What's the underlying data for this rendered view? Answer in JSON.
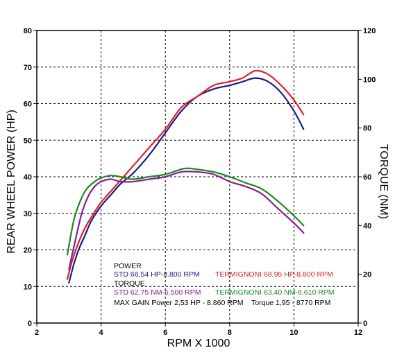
{
  "chart_data": {
    "type": "line",
    "xlabel": "RPM X 1000",
    "ylabel_left": "REAR WHEEL POWER (HP)",
    "ylabel_right": "TORQUE (NM)",
    "xlim": [
      2,
      12
    ],
    "ylim_left": [
      0,
      80
    ],
    "ylim_right": [
      0,
      120
    ],
    "x_ticks": [
      "2",
      "4",
      "6",
      "8",
      "10",
      "12"
    ],
    "y_left_ticks": [
      "0",
      "10",
      "20",
      "30",
      "40",
      "50",
      "60",
      "70",
      "80"
    ],
    "y_right_ticks": [
      "0",
      "20",
      "40",
      "60",
      "80",
      "100",
      "120"
    ],
    "grid": true,
    "series": [
      {
        "name": "STD POWER",
        "axis": "left",
        "color": "#1a1a8c",
        "x": [
          3.0,
          3.15,
          3.3,
          3.5,
          3.7,
          4.0,
          4.3,
          4.6,
          5.0,
          5.5,
          6.0,
          6.5,
          7.0,
          7.5,
          8.0,
          8.4,
          8.8,
          9.2,
          9.6,
          10.0,
          10.3
        ],
        "y": [
          11,
          16,
          20,
          24,
          28,
          32,
          35,
          38,
          41,
          46,
          52,
          58,
          62,
          64,
          65,
          66,
          67,
          66,
          63,
          58,
          53
        ]
      },
      {
        "name": "TERMIGNONI POWER",
        "axis": "left",
        "color": "#e02020",
        "x": [
          2.95,
          3.1,
          3.3,
          3.5,
          3.7,
          4.0,
          4.3,
          4.6,
          5.0,
          5.5,
          6.0,
          6.5,
          7.0,
          7.5,
          8.0,
          8.4,
          8.8,
          9.2,
          9.6,
          10.0,
          10.3
        ],
        "y": [
          12,
          17,
          22,
          26,
          29,
          33,
          36,
          39,
          43,
          48,
          53,
          59,
          62,
          65,
          66,
          67,
          69,
          68,
          65,
          61,
          57
        ]
      },
      {
        "name": "STD TORQUE",
        "axis": "right",
        "color": "#8a1a9a",
        "x": [
          3.0,
          3.2,
          3.4,
          3.6,
          3.8,
          4.0,
          4.3,
          4.6,
          5.0,
          5.5,
          6.0,
          6.5,
          7.0,
          7.5,
          8.0,
          8.5,
          9.0,
          9.5,
          10.0,
          10.3
        ],
        "y": [
          22,
          34,
          45,
          52,
          56,
          58,
          59,
          58,
          58,
          59,
          60,
          62,
          62,
          61,
          58,
          56,
          53,
          47,
          41,
          37
        ]
      },
      {
        "name": "TERMIGNONI TORQUE",
        "axis": "right",
        "color": "#1a8a1a",
        "x": [
          2.95,
          3.15,
          3.35,
          3.55,
          3.8,
          4.0,
          4.3,
          4.6,
          5.0,
          5.5,
          6.0,
          6.6,
          7.0,
          7.5,
          8.0,
          8.5,
          9.0,
          9.5,
          10.0,
          10.3
        ],
        "y": [
          28,
          42,
          50,
          55,
          58,
          59.5,
          60.5,
          60,
          59,
          60,
          61,
          63.4,
          63,
          62,
          60,
          57.5,
          55,
          50,
          44,
          40
        ]
      }
    ],
    "annotations": {
      "power_header": "POWER",
      "std_power": "STD 66,54 HP-8.800 RPM",
      "termi_power": "TERMIGNONI 68,95 HP-8.800 RPM",
      "torque_header": "TORQUE",
      "std_torque": "STD 62,75 NM-6.500 RPM",
      "termi_torque": "TERMIGNONI 63,40 NM-6.610 RPM",
      "max_gain": "MAX GAIN Power 2,53 HP - 8.860 RPM    Torque 1,95 - 8770 RPM"
    },
    "colors": {
      "std_power_text": "#1a1a8c",
      "termi_power_text": "#e02020",
      "std_torque_text": "#8a1a9a",
      "termi_torque_text": "#1a8a1a",
      "header_text": "#000000"
    }
  }
}
